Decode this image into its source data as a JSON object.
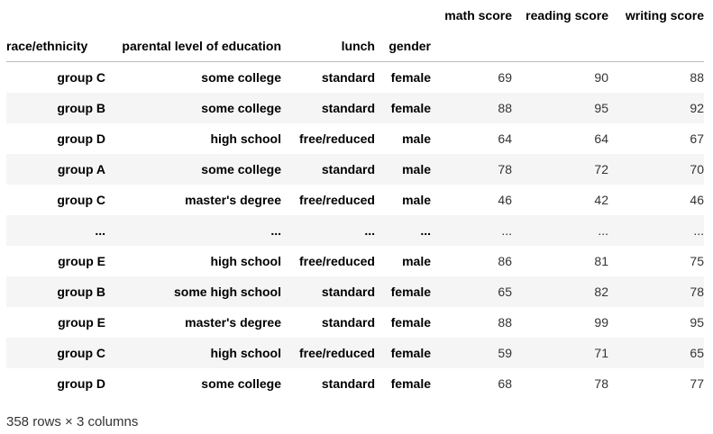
{
  "dataframe": {
    "index_names": [
      "race/ethnicity",
      "parental level of education",
      "lunch",
      "gender"
    ],
    "columns": [
      "math score",
      "reading score",
      "writing score"
    ],
    "rows": [
      {
        "race": "group C",
        "edu": "some college",
        "lunch": "standard",
        "gender": "female",
        "math": "69",
        "reading": "90",
        "writing": "88"
      },
      {
        "race": "group B",
        "edu": "some college",
        "lunch": "standard",
        "gender": "female",
        "math": "88",
        "reading": "95",
        "writing": "92"
      },
      {
        "race": "group D",
        "edu": "high school",
        "lunch": "free/reduced",
        "gender": "male",
        "math": "64",
        "reading": "64",
        "writing": "67"
      },
      {
        "race": "group A",
        "edu": "some college",
        "lunch": "standard",
        "gender": "male",
        "math": "78",
        "reading": "72",
        "writing": "70"
      },
      {
        "race": "group C",
        "edu": "master's degree",
        "lunch": "free/reduced",
        "gender": "male",
        "math": "46",
        "reading": "42",
        "writing": "46"
      },
      {
        "race": "...",
        "edu": "...",
        "lunch": "...",
        "gender": "...",
        "math": "...",
        "reading": "...",
        "writing": "..."
      },
      {
        "race": "group E",
        "edu": "high school",
        "lunch": "free/reduced",
        "gender": "male",
        "math": "86",
        "reading": "81",
        "writing": "75"
      },
      {
        "race": "group B",
        "edu": "some high school",
        "lunch": "standard",
        "gender": "female",
        "math": "65",
        "reading": "82",
        "writing": "78"
      },
      {
        "race": "group E",
        "edu": "master's degree",
        "lunch": "standard",
        "gender": "female",
        "math": "88",
        "reading": "99",
        "writing": "95"
      },
      {
        "race": "group C",
        "edu": "high school",
        "lunch": "free/reduced",
        "gender": "female",
        "math": "59",
        "reading": "71",
        "writing": "65"
      },
      {
        "race": "group D",
        "edu": "some college",
        "lunch": "standard",
        "gender": "female",
        "math": "68",
        "reading": "78",
        "writing": "77"
      }
    ],
    "shape_text": "358 rows × 3 columns"
  }
}
